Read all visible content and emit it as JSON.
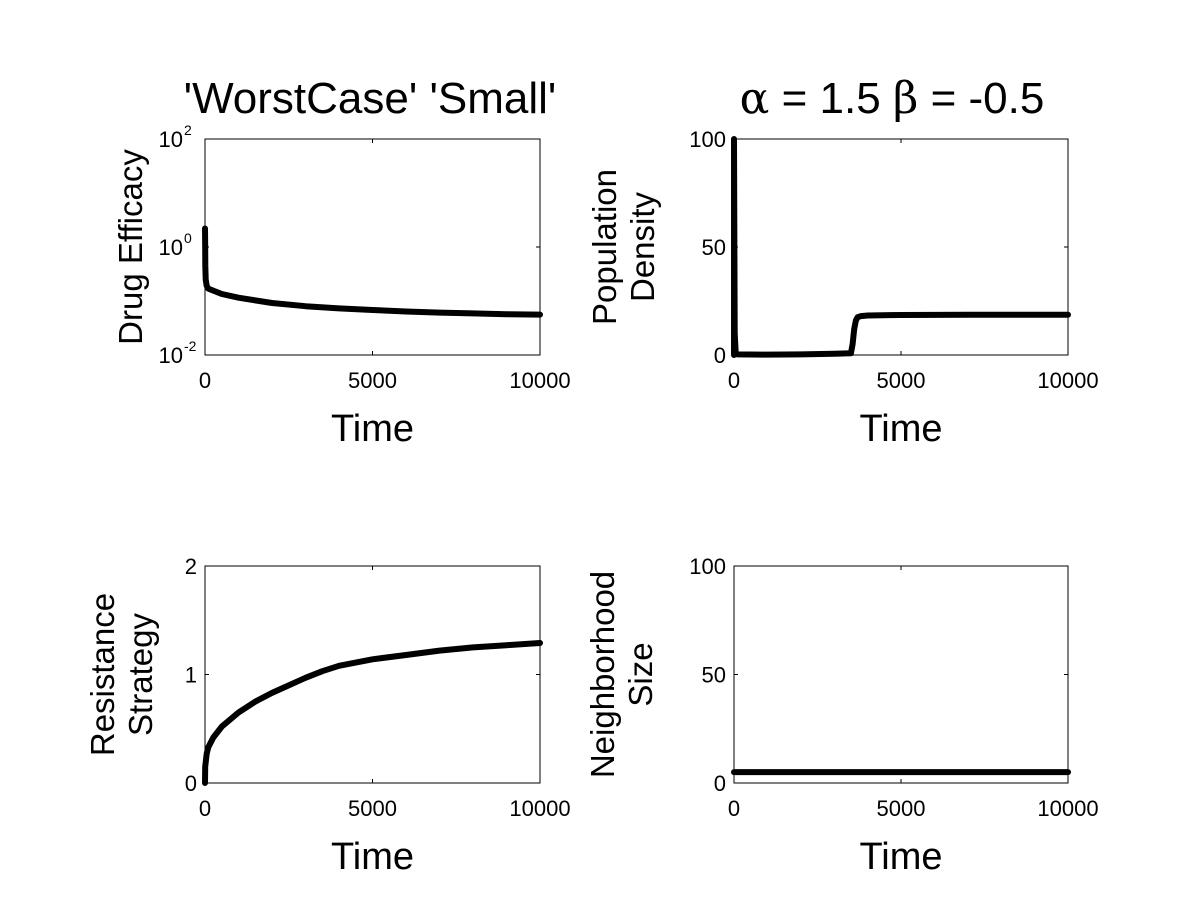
{
  "figure": {
    "title_left": "'WorstCase' 'Small'",
    "title_right_alpha_symbol": "α",
    "title_right_alpha_value": " = 1.5 ",
    "title_right_beta_symbol": "β",
    "title_right_beta_value": " = -0.5"
  },
  "chart_data": [
    {
      "type": "line",
      "ylabel": [
        "Drug Efficacy"
      ],
      "xlabel": "Time",
      "yscale": "log",
      "xlim": [
        0,
        10000
      ],
      "ylim": [
        0.01,
        100
      ],
      "xticks": [
        "0",
        "5000",
        "10000"
      ],
      "yticks": [
        {
          "base": "10",
          "exp": "2"
        },
        {
          "base": "10",
          "exp": "0"
        },
        {
          "base": "10",
          "exp": "-2"
        }
      ],
      "series": [
        {
          "color": "#000000",
          "x": [
            0,
            5,
            10,
            20,
            50,
            100,
            200,
            500,
            1000,
            2000,
            3000,
            4000,
            5000,
            6000,
            7000,
            8000,
            9000,
            10000
          ],
          "y": [
            2.2,
            1.0,
            0.45,
            0.25,
            0.19,
            0.17,
            0.16,
            0.135,
            0.115,
            0.092,
            0.08,
            0.073,
            0.068,
            0.064,
            0.061,
            0.059,
            0.057,
            0.056
          ]
        }
      ]
    },
    {
      "type": "line",
      "ylabel": [
        "Population",
        "Density"
      ],
      "xlabel": "Time",
      "yscale": "linear",
      "xlim": [
        0,
        10000
      ],
      "ylim": [
        0,
        100
      ],
      "xticks": [
        "0",
        "5000",
        "10000"
      ],
      "yticks": [
        "100",
        "50",
        "0"
      ],
      "series": [
        {
          "color": "#000000",
          "x": [
            0,
            0,
            20,
            50,
            100,
            1000,
            2000,
            3000,
            3500,
            3550,
            3600,
            3650,
            3700,
            3800,
            4000,
            5000,
            7000,
            10000
          ],
          "y": [
            0,
            100,
            10,
            1,
            0.3,
            0.2,
            0.3,
            0.6,
            0.8,
            5,
            12,
            16,
            17.5,
            18,
            18.3,
            18.5,
            18.6,
            18.6
          ]
        }
      ]
    },
    {
      "type": "line",
      "ylabel": [
        "Resistance",
        "Strategy"
      ],
      "xlabel": "Time",
      "yscale": "linear",
      "xlim": [
        0,
        10000
      ],
      "ylim": [
        0,
        2
      ],
      "xticks": [
        "0",
        "5000",
        "10000"
      ],
      "yticks": [
        "2",
        "1",
        "0"
      ],
      "series": [
        {
          "color": "#000000",
          "x": [
            0,
            5,
            50,
            100,
            250,
            500,
            1000,
            1500,
            2000,
            3000,
            3500,
            4000,
            5000,
            6000,
            7000,
            8000,
            9000,
            10000
          ],
          "y": [
            0,
            0.15,
            0.27,
            0.33,
            0.42,
            0.52,
            0.65,
            0.75,
            0.83,
            0.97,
            1.03,
            1.08,
            1.14,
            1.18,
            1.22,
            1.25,
            1.27,
            1.29
          ]
        }
      ]
    },
    {
      "type": "line",
      "ylabel": [
        "Neighborhood",
        "Size"
      ],
      "xlabel": "Time",
      "yscale": "linear",
      "xlim": [
        0,
        10000
      ],
      "ylim": [
        0,
        100
      ],
      "xticks": [
        "0",
        "5000",
        "10000"
      ],
      "yticks": [
        "100",
        "50",
        "0"
      ],
      "series": [
        {
          "color": "#000000",
          "x": [
            0,
            10000
          ],
          "y": [
            5,
            5
          ]
        }
      ]
    }
  ]
}
